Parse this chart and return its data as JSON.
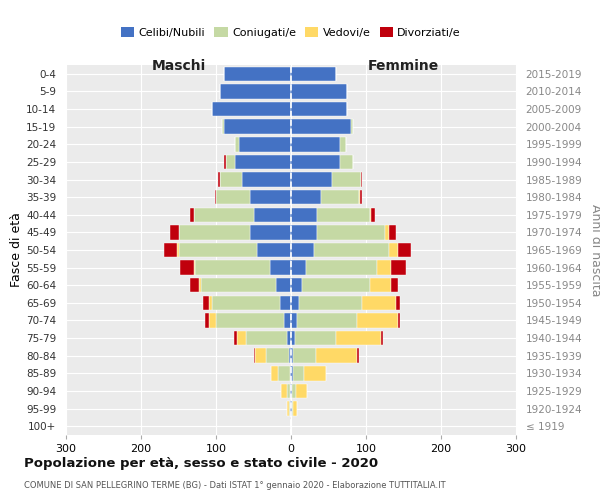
{
  "age_groups": [
    "0-4",
    "5-9",
    "10-14",
    "15-19",
    "20-24",
    "25-29",
    "30-34",
    "35-39",
    "40-44",
    "45-49",
    "50-54",
    "55-59",
    "60-64",
    "65-69",
    "70-74",
    "75-79",
    "80-84",
    "85-89",
    "90-94",
    "95-99",
    "100+"
  ],
  "birth_years": [
    "2015-2019",
    "2010-2014",
    "2005-2009",
    "2000-2004",
    "1995-1999",
    "1990-1994",
    "1985-1989",
    "1980-1984",
    "1975-1979",
    "1970-1974",
    "1965-1969",
    "1960-1964",
    "1955-1959",
    "1950-1954",
    "1945-1949",
    "1940-1944",
    "1935-1939",
    "1930-1934",
    "1925-1929",
    "1920-1924",
    "≤ 1919"
  ],
  "male_celibi": [
    90,
    95,
    105,
    90,
    70,
    75,
    65,
    55,
    50,
    55,
    45,
    28,
    20,
    15,
    10,
    5,
    3,
    2,
    1,
    1,
    0
  ],
  "male_coniugati": [
    0,
    0,
    0,
    2,
    5,
    12,
    30,
    45,
    80,
    95,
    105,
    100,
    100,
    90,
    90,
    55,
    30,
    15,
    5,
    2,
    0
  ],
  "male_vedovi": [
    0,
    0,
    0,
    0,
    0,
    0,
    0,
    0,
    0,
    0,
    2,
    2,
    3,
    5,
    10,
    12,
    15,
    10,
    8,
    2,
    0
  ],
  "male_divorziati": [
    0,
    0,
    0,
    0,
    0,
    2,
    2,
    2,
    5,
    12,
    18,
    18,
    12,
    8,
    5,
    4,
    2,
    0,
    0,
    0,
    0
  ],
  "female_nubili": [
    60,
    75,
    75,
    80,
    65,
    65,
    55,
    40,
    35,
    35,
    30,
    20,
    15,
    10,
    8,
    5,
    3,
    2,
    1,
    1,
    0
  ],
  "female_coniugate": [
    0,
    0,
    0,
    2,
    8,
    18,
    38,
    50,
    70,
    90,
    100,
    95,
    90,
    85,
    80,
    55,
    30,
    15,
    5,
    2,
    0
  ],
  "female_vedove": [
    0,
    0,
    0,
    0,
    0,
    0,
    0,
    2,
    2,
    5,
    12,
    18,
    28,
    45,
    55,
    60,
    55,
    30,
    15,
    5,
    0
  ],
  "female_divorziate": [
    0,
    0,
    0,
    0,
    0,
    0,
    2,
    2,
    5,
    10,
    18,
    20,
    10,
    5,
    2,
    2,
    2,
    0,
    0,
    0,
    0
  ],
  "colors": {
    "celibi": "#4472C4",
    "coniugati": "#C5D9A4",
    "vedovi": "#FFD966",
    "divorziati": "#C0000C"
  },
  "title": "Popolazione per età, sesso e stato civile - 2020",
  "subtitle": "COMUNE DI SAN PELLEGRINO TERME (BG) - Dati ISTAT 1° gennaio 2020 - Elaborazione TUTTITALIA.IT",
  "ylabel_left": "Fasce di età",
  "ylabel_right": "Anni di nascita",
  "xlabel_left": "Maschi",
  "xlabel_right": "Femmine"
}
